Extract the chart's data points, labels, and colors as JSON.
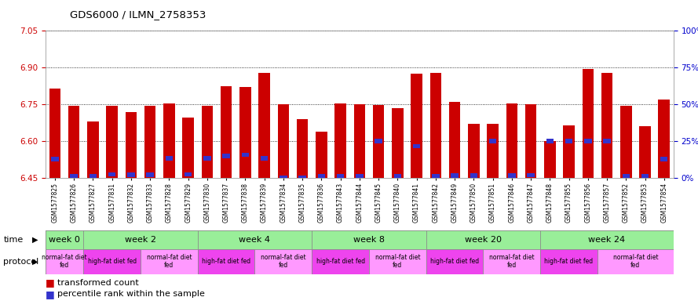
{
  "title": "GDS6000 / ILMN_2758353",
  "samples": [
    "GSM1577825",
    "GSM1577826",
    "GSM1577827",
    "GSM1577831",
    "GSM1577832",
    "GSM1577833",
    "GSM1577828",
    "GSM1577829",
    "GSM1577830",
    "GSM1577837",
    "GSM1577838",
    "GSM1577839",
    "GSM1577834",
    "GSM1577835",
    "GSM1577836",
    "GSM1577843",
    "GSM1577844",
    "GSM1577845",
    "GSM1577840",
    "GSM1577841",
    "GSM1577842",
    "GSM1577849",
    "GSM1577850",
    "GSM1577851",
    "GSM1577846",
    "GSM1577847",
    "GSM1577848",
    "GSM1577855",
    "GSM1577856",
    "GSM1577857",
    "GSM1577852",
    "GSM1577853",
    "GSM1577854"
  ],
  "bar_heights": [
    6.815,
    6.745,
    6.68,
    6.745,
    6.72,
    6.745,
    6.755,
    6.695,
    6.745,
    6.825,
    6.82,
    6.88,
    6.75,
    6.69,
    6.64,
    6.755,
    6.75,
    6.748,
    6.735,
    6.875,
    6.88,
    6.76,
    6.67,
    6.67,
    6.755,
    6.75,
    6.6,
    6.665,
    6.895,
    6.88,
    6.745,
    6.66,
    6.77
  ],
  "blue_heights": [
    6.528,
    6.457,
    6.457,
    6.465,
    6.464,
    6.463,
    6.53,
    6.465,
    6.53,
    6.54,
    6.545,
    6.53,
    6.452,
    6.452,
    6.456,
    6.456,
    6.456,
    6.6,
    6.456,
    6.58,
    6.458,
    6.46,
    6.46,
    6.6,
    6.46,
    6.462,
    6.6,
    6.6,
    6.6,
    6.6,
    6.456,
    6.456,
    6.528
  ],
  "ymin": 6.45,
  "ymax": 7.05,
  "yticks_left": [
    6.45,
    6.6,
    6.75,
    6.9,
    7.05
  ],
  "yticks_right": [
    0,
    25,
    50,
    75,
    100
  ],
  "bar_color": "#CC0000",
  "blue_color": "#3333CC",
  "time_groups": [
    {
      "label": "week 0",
      "start": 0,
      "end": 2,
      "n": 2
    },
    {
      "label": "week 2",
      "start": 2,
      "end": 8,
      "n": 6
    },
    {
      "label": "week 4",
      "start": 8,
      "end": 14,
      "n": 6
    },
    {
      "label": "week 8",
      "start": 14,
      "end": 20,
      "n": 6
    },
    {
      "label": "week 20",
      "start": 20,
      "end": 26,
      "n": 6
    },
    {
      "label": "week 24",
      "start": 26,
      "end": 33,
      "n": 7
    }
  ],
  "protocol_groups": [
    {
      "label": "normal-fat diet\nfed",
      "start": 0,
      "end": 2,
      "color": "#FF99FF"
    },
    {
      "label": "high-fat diet fed",
      "start": 2,
      "end": 5,
      "color": "#EE44EE"
    },
    {
      "label": "normal-fat diet\nfed",
      "start": 5,
      "end": 8,
      "color": "#FF99FF"
    },
    {
      "label": "high-fat diet fed",
      "start": 8,
      "end": 11,
      "color": "#EE44EE"
    },
    {
      "label": "normal-fat diet\nfed",
      "start": 11,
      "end": 14,
      "color": "#FF99FF"
    },
    {
      "label": "high-fat diet fed",
      "start": 14,
      "end": 17,
      "color": "#EE44EE"
    },
    {
      "label": "normal-fat diet\nfed",
      "start": 17,
      "end": 20,
      "color": "#FF99FF"
    },
    {
      "label": "high-fat diet fed",
      "start": 20,
      "end": 23,
      "color": "#EE44EE"
    },
    {
      "label": "normal-fat diet\nfed",
      "start": 23,
      "end": 26,
      "color": "#FF99FF"
    },
    {
      "label": "high-fat diet fed",
      "start": 26,
      "end": 29,
      "color": "#EE44EE"
    },
    {
      "label": "normal-fat diet\nfed",
      "start": 29,
      "end": 33,
      "color": "#FF99FF"
    }
  ],
  "time_bg_color": "#99EE99",
  "left_axis_color": "#CC0000",
  "right_axis_color": "#0000CC",
  "bg_color": "#FFFFFF",
  "grid_color": "#000000",
  "plot_bg_color": "#FFFFFF"
}
